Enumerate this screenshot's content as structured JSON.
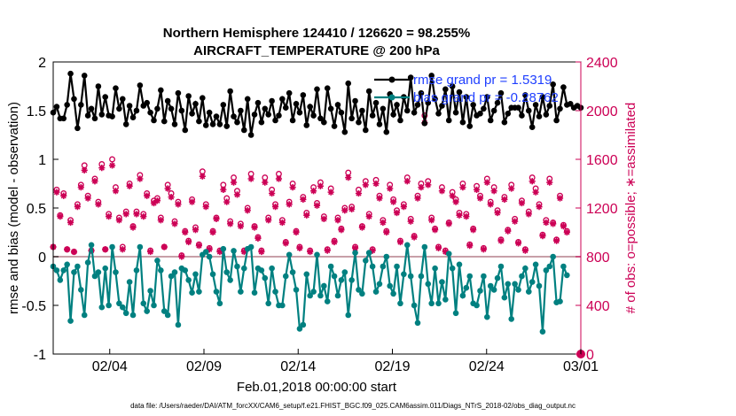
{
  "chart_data": {
    "type": "line",
    "title_line1": "Northern Hemisphere 124410 / 126620 = 98.255%",
    "title_line2": "AIRCRAFT_TEMPERATURE @ 200 hPa",
    "ylabel_left": "rmse and bias (model - observation)",
    "ylabel_right": "# of obs: o=possible; ∗=assimilated",
    "xlabel": "Feb.01,2018 00:00:00 start",
    "footnote": "data file: /Users/raeder/DAI/ATM_forcXX/CAM6_setup/f.e21.FHIST_BGC.f09_025.CAM6assim.011/Diags_NTrS_2018-02/obs_diag_output.nc",
    "ylim_left": [
      -1,
      2
    ],
    "ylim_right": [
      0,
      2400
    ],
    "xlim": [
      0,
      28
    ],
    "left_ticks": [
      "-1",
      "-0.5",
      "0",
      "0.5",
      "1",
      "1.5",
      "2"
    ],
    "right_ticks": [
      "0",
      "400",
      "800",
      "1200",
      "1600",
      "2000",
      "2400"
    ],
    "x_tick_positions": [
      3,
      8,
      13,
      18,
      23,
      28
    ],
    "x_tick_labels": [
      "02/04",
      "02/09",
      "02/14",
      "02/19",
      "02/24",
      "03/01"
    ],
    "legend": [
      {
        "name": "rmse grand pr = 1.5319",
        "color": "#000000"
      },
      {
        "name": "bias grand pr = -0.28762",
        "color": "#008080"
      }
    ],
    "colors": {
      "rmse": "#000000",
      "bias": "#008080",
      "obs": "#cc0055",
      "zero_line": "#c8a0a8"
    },
    "series": [
      {
        "name": "rmse",
        "values": [
          1.48,
          1.54,
          1.42,
          1.42,
          1.56,
          1.88,
          1.62,
          1.32,
          1.56,
          1.86,
          1.45,
          1.52,
          1.42,
          1.75,
          1.46,
          1.64,
          1.45,
          1.44,
          1.73,
          1.52,
          1.62,
          1.36,
          1.55,
          1.43,
          1.5,
          1.76,
          1.55,
          1.58,
          1.48,
          1.4,
          1.52,
          1.71,
          1.39,
          1.6,
          1.52,
          1.36,
          1.68,
          1.5,
          1.3,
          1.65,
          1.47,
          1.57,
          1.39,
          1.63,
          1.35,
          1.48,
          1.36,
          1.44,
          1.36,
          1.56,
          1.34,
          1.7,
          1.44,
          1.38,
          1.5,
          1.3,
          1.62,
          1.25,
          1.46,
          1.58,
          1.38,
          1.52,
          1.46,
          1.6,
          1.4,
          1.45,
          1.62,
          1.53,
          1.68,
          1.4,
          1.57,
          1.48,
          1.66,
          1.35,
          1.54,
          1.45,
          1.72,
          1.42,
          1.38,
          1.73,
          1.52,
          1.34,
          1.56,
          1.48,
          1.28,
          1.78,
          1.42,
          1.6,
          1.38,
          1.5,
          1.3,
          1.7,
          1.45,
          1.58,
          1.36,
          1.52,
          1.28,
          1.67,
          1.46,
          1.56,
          1.4,
          1.64,
          1.5,
          1.84,
          1.48,
          1.56,
          1.68,
          1.37,
          1.58,
          1.86,
          1.62,
          1.47,
          1.55,
          1.72,
          1.4,
          1.75,
          1.48,
          1.69,
          1.38,
          1.64,
          1.34,
          1.56,
          1.45,
          1.47,
          1.52,
          1.64,
          1.4,
          1.5,
          1.58,
          1.68,
          1.38,
          1.47,
          1.53,
          1.53,
          1.53,
          1.45,
          1.66,
          1.5,
          1.33,
          1.56,
          1.44,
          1.64,
          1.46,
          1.55,
          1.77,
          1.4,
          1.52,
          1.74,
          1.56,
          1.57,
          1.53,
          1.55,
          1.53
        ]
      },
      {
        "name": "bias",
        "values": [
          -0.1,
          -0.14,
          -0.24,
          -0.14,
          -0.08,
          -0.66,
          -0.16,
          -0.1,
          -0.34,
          -0.6,
          -0.06,
          0.12,
          -0.2,
          -0.16,
          -0.52,
          -0.12,
          -0.5,
          0.1,
          -0.16,
          -0.48,
          -0.52,
          -0.58,
          -0.26,
          -0.6,
          -0.14,
          0.1,
          -0.48,
          -0.56,
          -0.35,
          -0.5,
          -0.04,
          -0.14,
          -0.56,
          -0.6,
          -0.2,
          -0.16,
          -0.7,
          -0.12,
          -0.14,
          -0.24,
          -0.37,
          -0.18,
          -0.36,
          0.02,
          0.05,
          0.0,
          -0.18,
          -0.36,
          -0.48,
          0.08,
          -0.16,
          -0.24,
          0.06,
          -0.1,
          -0.36,
          -0.12,
          0.08,
          0.1,
          -0.37,
          -0.12,
          -0.14,
          -0.22,
          -0.48,
          -0.12,
          -0.36,
          -0.5,
          -0.5,
          -0.2,
          0.02,
          -0.16,
          -0.34,
          -0.74,
          -0.7,
          -0.18,
          -0.4,
          -0.36,
          0.02,
          -0.4,
          -0.3,
          -0.46,
          -0.1,
          -0.2,
          -0.4,
          -0.24,
          -0.16,
          -0.6,
          -0.24,
          0.04,
          -0.34,
          -0.38,
          -0.04,
          0.04,
          -0.1,
          -0.36,
          -0.28,
          -0.1,
          0.0,
          -0.3,
          -0.38,
          -0.1,
          -0.48,
          -0.18,
          0.12,
          -0.2,
          -0.5,
          -0.68,
          -0.2,
          0.1,
          -0.28,
          -0.48,
          -0.12,
          -0.48,
          -0.26,
          -0.44,
          0.03,
          -0.12,
          -0.58,
          -0.08,
          -0.4,
          -0.32,
          -0.2,
          -0.48,
          -0.5,
          -0.35,
          -0.2,
          -0.62,
          -0.3,
          -0.34,
          -0.22,
          -0.1,
          -0.42,
          -0.28,
          -0.64,
          -0.28,
          -0.34,
          -0.2,
          -0.12,
          -0.36,
          -0.26,
          -0.08,
          -0.3,
          -0.77,
          -0.14,
          -0.1,
          0.0,
          -0.47,
          -0.46,
          -0.1,
          -0.19
        ]
      },
      {
        "name": "obs_possible",
        "values": [
          880,
          1350,
          1140,
          1320,
          860,
          1100,
          840,
          1230,
          1390,
          1550,
          1300,
          850,
          1440,
          1250,
          1560,
          860,
          1150,
          1600,
          1370,
          1120,
          880,
          1170,
          1400,
          1050,
          1170,
          1470,
          1150,
          1320,
          850,
          1260,
          1280,
          1120,
          880,
          1390,
          1320,
          1090,
          1250,
          810,
          1010,
          930,
          1270,
          1040,
          900,
          1500,
          1230,
          870,
          1010,
          1120,
          850,
          1390,
          1280,
          1090,
          1450,
          1340,
          1070,
          850,
          1200,
          1480,
          1050,
          960,
          850,
          1450,
          1120,
          1350,
          1230,
          1480,
          1100,
          920,
          1250,
          1400,
          1010,
          880,
          1290,
          1160,
          850,
          1370,
          1240,
          1410,
          1130,
          860,
          1360,
          930,
          1120,
          1030,
          1200,
          1490,
          1210,
          880,
          1350,
          1050,
          1420,
          1150,
          860,
          1430,
          1300,
          1100,
          1010,
          1390,
          1270,
          1180,
          930,
          1230,
          1450,
          1110,
          970,
          1300,
          1400,
          1960,
          1420,
          1120,
          1030,
          880,
          1370,
          850,
          1080,
          1330,
          1270,
          1160,
          1400,
          1150,
          900,
          1030,
          1380,
          1300,
          870,
          1440,
          1250,
          1370,
          1180,
          940,
          1290,
          1020,
          1390,
          1110,
          920,
          1260,
          860,
          1170,
          1450,
          1360,
          1230,
          980,
          1100,
          1440,
          1080,
          940,
          1300,
          1060,
          1010
        ]
      },
      {
        "name": "obs_assimilated",
        "values": [
          880,
          1330,
          1130,
          1300,
          860,
          1080,
          840,
          1210,
          1370,
          1510,
          1280,
          850,
          1420,
          1230,
          1530,
          860,
          1130,
          1550,
          1340,
          1100,
          860,
          1150,
          1380,
          1040,
          1150,
          1440,
          1130,
          1300,
          840,
          1240,
          1260,
          1100,
          880,
          1360,
          1290,
          1070,
          1230,
          800,
          1000,
          920,
          1250,
          1020,
          890,
          1460,
          1210,
          860,
          1000,
          1110,
          840,
          1350,
          1250,
          1070,
          1410,
          1310,
          1050,
          840,
          1180,
          1440,
          1040,
          950,
          840,
          1410,
          1100,
          1320,
          1210,
          1440,
          1080,
          910,
          1230,
          1370,
          1000,
          870,
          1270,
          1140,
          840,
          1340,
          1220,
          1380,
          1110,
          850,
          1330,
          920,
          1100,
          1020,
          1180,
          1450,
          1190,
          870,
          1320,
          1040,
          1390,
          1130,
          850,
          1400,
          1280,
          1080,
          1000,
          1360,
          1250,
          1160,
          920,
          1210,
          1420,
          1090,
          960,
          1280,
          1370,
          1900,
          1390,
          1100,
          1020,
          870,
          1340,
          840,
          1070,
          1300,
          1250,
          1140,
          1370,
          1130,
          890,
          1020,
          1350,
          1280,
          860,
          1410,
          1230,
          1340,
          1160,
          930,
          1270,
          1010,
          1360,
          1090,
          910,
          1240,
          850,
          1150,
          1420,
          1330,
          1210,
          970,
          1080,
          1410,
          1070,
          930,
          1280,
          1050,
          1000
        ]
      }
    ]
  }
}
